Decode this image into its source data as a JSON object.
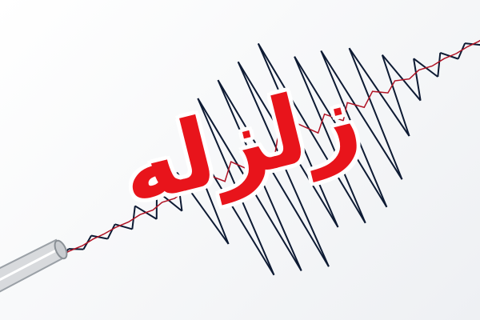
{
  "headline": "زلزله",
  "colors": {
    "text": "#e8141b",
    "trace_dark": "#0d1a33",
    "trace_red": "#b01224",
    "background": "#f4f5f7"
  },
  "icons": [
    "seismograph-pen-icon"
  ]
}
